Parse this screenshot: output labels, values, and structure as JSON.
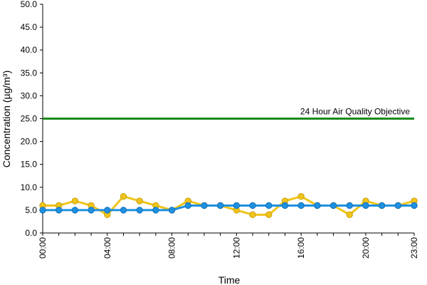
{
  "chart_data": {
    "type": "line",
    "xlabel": "Time",
    "ylabel": "Concentration (µg/m³)",
    "ylim": [
      0,
      50
    ],
    "y_ticks": [
      "0.0",
      "5.0",
      "10.0",
      "15.0",
      "20.0",
      "25.0",
      "30.0",
      "35.0",
      "40.0",
      "45.0",
      "50.0"
    ],
    "x": [
      "00:00",
      "01:00",
      "02:00",
      "03:00",
      "04:00",
      "05:00",
      "06:00",
      "07:00",
      "08:00",
      "09:00",
      "10:00",
      "11:00",
      "12:00",
      "13:00",
      "14:00",
      "15:00",
      "16:00",
      "17:00",
      "18:00",
      "19:00",
      "20:00",
      "21:00",
      "22:00",
      "23:00"
    ],
    "x_tick_labels": [
      "00:00",
      "04:00",
      "08:00",
      "12:00",
      "16:00",
      "20:00",
      "23:00"
    ],
    "grid": false,
    "series": [
      {
        "color": "#f0c419",
        "values": [
          6,
          6,
          7,
          6,
          4,
          8,
          7,
          6,
          5,
          7,
          6,
          6,
          5,
          4,
          4,
          7,
          8,
          6,
          6,
          4,
          7,
          6,
          6,
          7
        ]
      },
      {
        "color": "#1e90e0",
        "values": [
          5,
          5,
          5,
          5,
          5,
          5,
          5,
          5,
          5,
          6,
          6,
          6,
          6,
          6,
          6,
          6,
          6,
          6,
          6,
          6,
          6,
          6,
          6,
          6
        ]
      }
    ],
    "reference_line": {
      "label": "24 Hour Air Quality Objective",
      "value": 25,
      "color": "#1a8a1a"
    }
  }
}
